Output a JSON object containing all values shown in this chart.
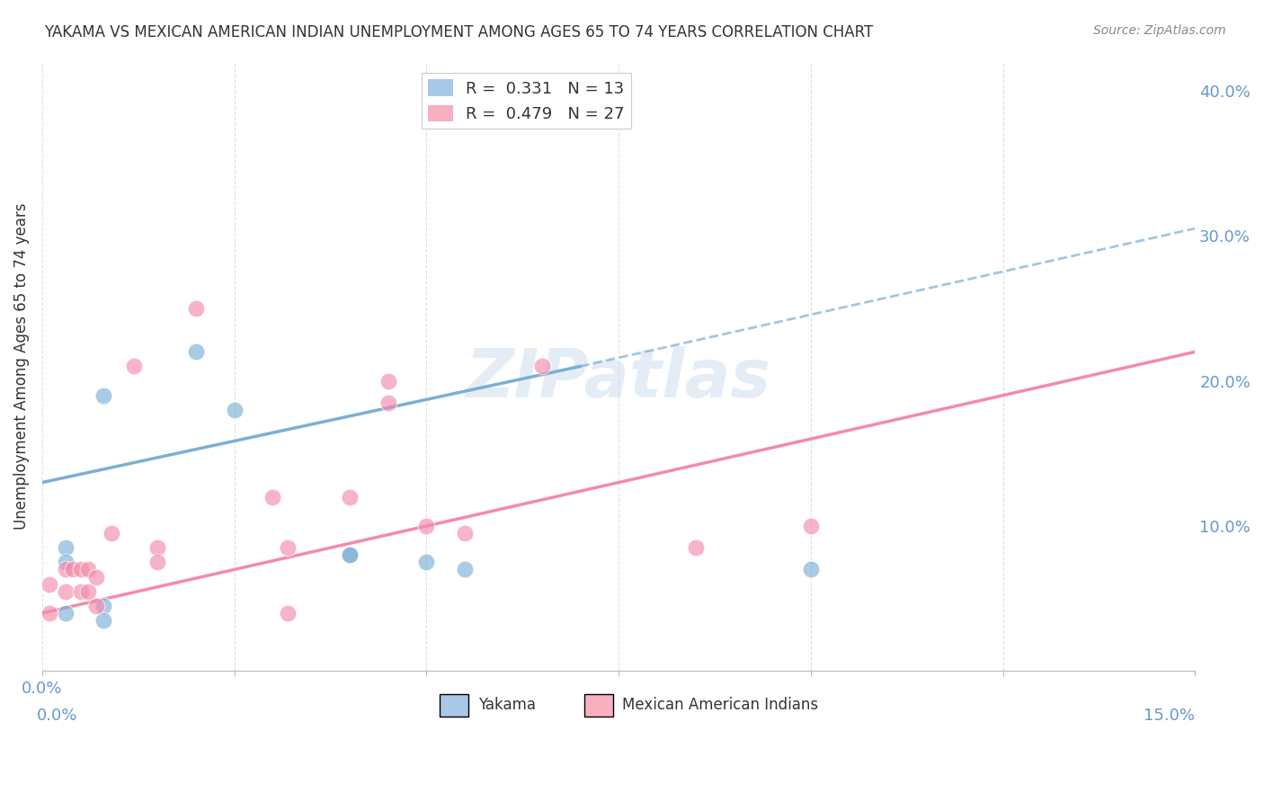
{
  "title": "YAKAMA VS MEXICAN AMERICAN INDIAN UNEMPLOYMENT AMONG AGES 65 TO 74 YEARS CORRELATION CHART",
  "source": "Source: ZipAtlas.com",
  "ylabel": "Unemployment Among Ages 65 to 74 years",
  "xlim": [
    0.0,
    0.15
  ],
  "ylim": [
    0.0,
    0.42
  ],
  "xticks": [
    0.0,
    0.025,
    0.05,
    0.075,
    0.1,
    0.125,
    0.15
  ],
  "yticks_right": [
    0.0,
    0.1,
    0.2,
    0.3,
    0.4
  ],
  "ytick_labels_right": [
    "",
    "10.0%",
    "20.0%",
    "30.0%",
    "40.0%"
  ],
  "legend_r1": "R =  0.331   N = 13",
  "legend_r2": "R =  0.479   N = 27",
  "yakama_color": "#7bafd4",
  "yakama_legend_color": "#a8c8e8",
  "mexican_color": "#f48aaa",
  "mexican_legend_color": "#f8b0c0",
  "watermark": "ZIPatlas",
  "yakama_points": [
    [
      0.003,
      0.085
    ],
    [
      0.003,
      0.075
    ],
    [
      0.003,
      0.04
    ],
    [
      0.008,
      0.19
    ],
    [
      0.008,
      0.045
    ],
    [
      0.008,
      0.035
    ],
    [
      0.02,
      0.22
    ],
    [
      0.025,
      0.18
    ],
    [
      0.04,
      0.08
    ],
    [
      0.04,
      0.08
    ],
    [
      0.05,
      0.075
    ],
    [
      0.055,
      0.07
    ],
    [
      0.1,
      0.07
    ]
  ],
  "mexican_points": [
    [
      0.001,
      0.06
    ],
    [
      0.001,
      0.04
    ],
    [
      0.003,
      0.07
    ],
    [
      0.003,
      0.055
    ],
    [
      0.004,
      0.07
    ],
    [
      0.005,
      0.07
    ],
    [
      0.005,
      0.055
    ],
    [
      0.006,
      0.07
    ],
    [
      0.006,
      0.055
    ],
    [
      0.007,
      0.065
    ],
    [
      0.007,
      0.045
    ],
    [
      0.009,
      0.095
    ],
    [
      0.012,
      0.21
    ],
    [
      0.015,
      0.085
    ],
    [
      0.015,
      0.075
    ],
    [
      0.02,
      0.25
    ],
    [
      0.03,
      0.12
    ],
    [
      0.032,
      0.085
    ],
    [
      0.032,
      0.04
    ],
    [
      0.04,
      0.12
    ],
    [
      0.045,
      0.2
    ],
    [
      0.045,
      0.185
    ],
    [
      0.05,
      0.1
    ],
    [
      0.055,
      0.095
    ],
    [
      0.065,
      0.21
    ],
    [
      0.085,
      0.085
    ],
    [
      0.1,
      0.1
    ]
  ],
  "yakama_line_solid": {
    "x0": 0.0,
    "y0": 0.13,
    "x1": 0.07,
    "y1": 0.21
  },
  "yakama_line_dashed": {
    "x0": 0.07,
    "y0": 0.21,
    "x1": 0.15,
    "y1": 0.305
  },
  "mexican_line": {
    "x0": 0.0,
    "y0": 0.04,
    "x1": 0.15,
    "y1": 0.22
  },
  "bg_color": "#ffffff",
  "grid_color": "#dddddd",
  "title_color": "#333333",
  "axis_label_color": "#333333",
  "tick_label_color": "#6699cc"
}
